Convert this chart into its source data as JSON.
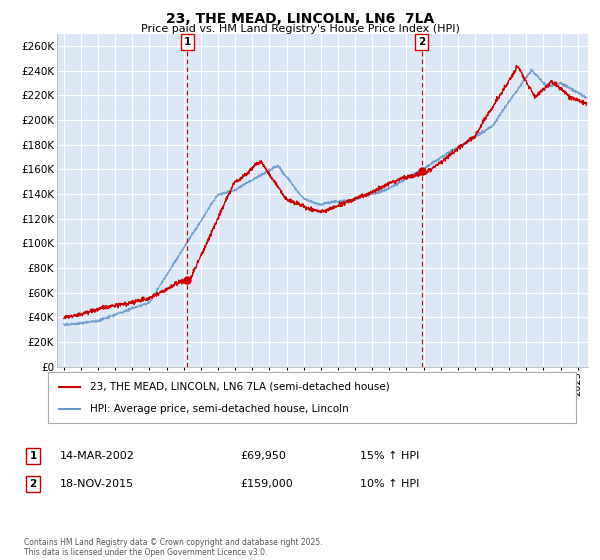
{
  "title": "23, THE MEAD, LINCOLN, LN6  7LA",
  "subtitle": "Price paid vs. HM Land Registry's House Price Index (HPI)",
  "ylim": [
    0,
    270000
  ],
  "yticks": [
    0,
    20000,
    40000,
    60000,
    80000,
    100000,
    120000,
    140000,
    160000,
    180000,
    200000,
    220000,
    240000,
    260000
  ],
  "line1_color": "#cc0000",
  "line2_color": "#6699cc",
  "line1_label": "23, THE MEAD, LINCOLN, LN6 7LA (semi-detached house)",
  "line2_label": "HPI: Average price, semi-detached house, Lincoln",
  "marker1_date": 2002.2,
  "marker1_value": 69950,
  "marker1_label": "1",
  "marker2_date": 2015.9,
  "marker2_value": 159000,
  "marker2_label": "2",
  "annotation1_date": "14-MAR-2002",
  "annotation1_price": "£69,950",
  "annotation1_hpi": "15% ↑ HPI",
  "annotation2_date": "18-NOV-2015",
  "annotation2_price": "£159,000",
  "annotation2_hpi": "10% ↑ HPI",
  "footnote": "Contains HM Land Registry data © Crown copyright and database right 2025.\nThis data is licensed under the Open Government Licence v3.0.",
  "background_color": "#ffffff",
  "plot_bg_color": "#dce8f5",
  "grid_color": "#ffffff"
}
